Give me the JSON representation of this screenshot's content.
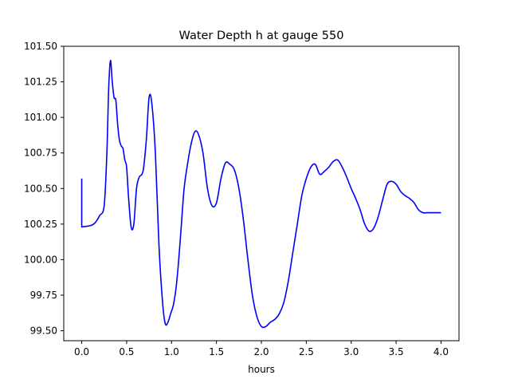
{
  "chart_data": {
    "type": "line",
    "title": "Water Depth h at gauge 550",
    "xlabel": "hours",
    "ylabel": "",
    "xlim": [
      -0.2,
      4.2
    ],
    "ylim": [
      99.43,
      101.5
    ],
    "xticks": [
      0.0,
      0.5,
      1.0,
      1.5,
      2.0,
      2.5,
      3.0,
      3.5,
      4.0
    ],
    "xtick_labels": [
      "0.0",
      "0.5",
      "1.0",
      "1.5",
      "2.0",
      "2.5",
      "3.0",
      "3.5",
      "4.0"
    ],
    "yticks": [
      99.5,
      99.75,
      100.0,
      100.25,
      100.5,
      100.75,
      101.0,
      101.25,
      101.5
    ],
    "ytick_labels": [
      "99.50",
      "99.75",
      "100.00",
      "100.25",
      "100.50",
      "100.75",
      "101.00",
      "101.25",
      "101.50"
    ],
    "grid": false,
    "legend": "none",
    "series": [
      {
        "color": "#0000ff",
        "x": [
          0.0,
          0.0,
          0.1,
          0.15,
          0.2,
          0.25,
          0.28,
          0.3,
          0.32,
          0.34,
          0.36,
          0.38,
          0.4,
          0.42,
          0.44,
          0.46,
          0.48,
          0.5,
          0.52,
          0.55,
          0.58,
          0.61,
          0.64,
          0.67,
          0.69,
          0.72,
          0.75,
          0.78,
          0.82,
          0.86,
          0.9,
          0.93,
          0.96,
          0.99,
          1.02,
          1.05,
          1.08,
          1.11,
          1.14,
          1.18,
          1.22,
          1.26,
          1.3,
          1.35,
          1.4,
          1.45,
          1.5,
          1.55,
          1.6,
          1.65,
          1.7,
          1.75,
          1.8,
          1.85,
          1.9,
          1.95,
          2.0,
          2.05,
          2.1,
          2.15,
          2.2,
          2.25,
          2.3,
          2.35,
          2.4,
          2.45,
          2.5,
          2.55,
          2.6,
          2.65,
          2.7,
          2.75,
          2.8,
          2.85,
          2.9,
          2.95,
          3.0,
          3.05,
          3.1,
          3.15,
          3.2,
          3.25,
          3.3,
          3.35,
          3.4,
          3.45,
          3.5,
          3.55,
          3.6,
          3.65,
          3.7,
          3.75,
          3.8,
          3.85,
          3.9,
          3.95,
          4.0
        ],
        "y": [
          100.57,
          100.23,
          100.24,
          100.26,
          100.31,
          100.38,
          100.75,
          101.2,
          101.4,
          101.25,
          101.14,
          101.12,
          100.95,
          100.84,
          100.8,
          100.78,
          100.7,
          100.65,
          100.45,
          100.23,
          100.25,
          100.5,
          100.58,
          100.6,
          100.65,
          100.85,
          101.14,
          101.1,
          100.75,
          100.1,
          99.7,
          99.55,
          99.56,
          99.62,
          99.68,
          99.8,
          100.0,
          100.25,
          100.5,
          100.68,
          100.82,
          100.9,
          100.88,
          100.75,
          100.5,
          100.38,
          100.4,
          100.57,
          100.68,
          100.67,
          100.63,
          100.5,
          100.28,
          100.0,
          99.75,
          99.6,
          99.53,
          99.53,
          99.56,
          99.58,
          99.62,
          99.7,
          99.85,
          100.05,
          100.25,
          100.45,
          100.57,
          100.65,
          100.67,
          100.6,
          100.62,
          100.65,
          100.69,
          100.7,
          100.65,
          100.58,
          100.5,
          100.43,
          100.35,
          100.25,
          100.2,
          100.22,
          100.3,
          100.42,
          100.53,
          100.55,
          100.53,
          100.48,
          100.45,
          100.43,
          100.4,
          100.35,
          100.33,
          100.33,
          100.33,
          100.33,
          100.33
        ]
      }
    ]
  }
}
